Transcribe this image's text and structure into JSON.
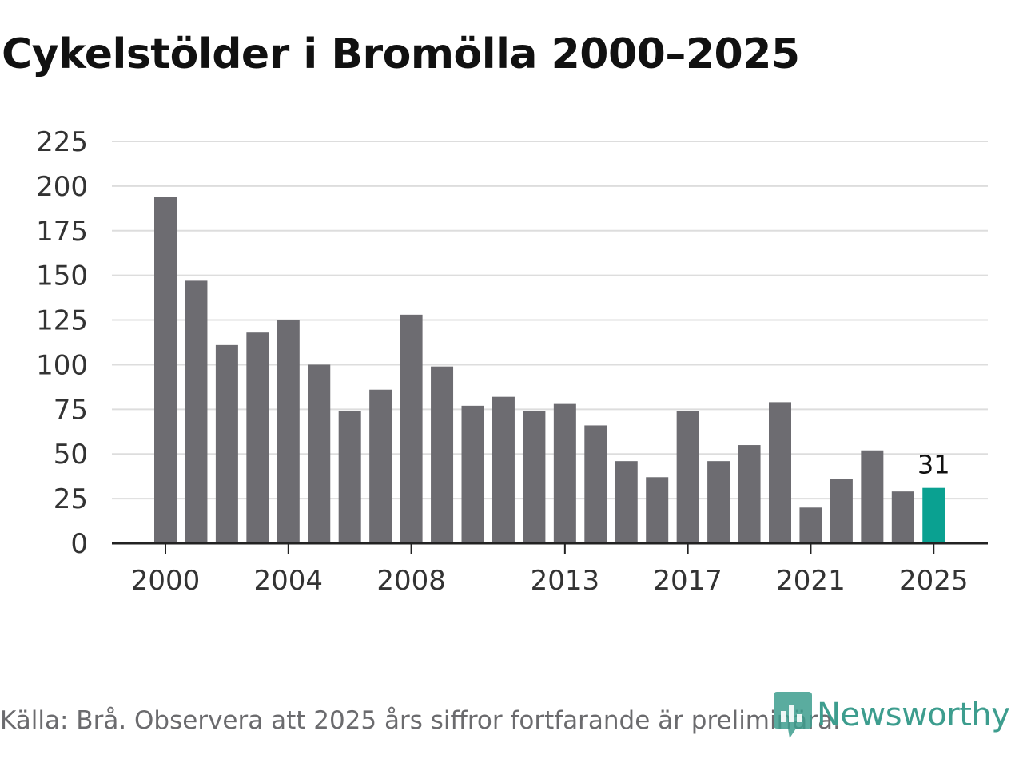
{
  "title": "Cykelstölder i Bromölla 2000–2025",
  "footer": "Källa: Brå. Observera att 2025 års siffror fortfarande är preliminära.",
  "brand": {
    "name": "Newsworthy",
    "icon": "newsworthy-logo-icon"
  },
  "colors": {
    "bar": "#6d6c71",
    "highlight": "#0aa191",
    "grid": "#dddddd",
    "axis": "#222222",
    "text": "#333333"
  },
  "chart_data": {
    "type": "bar",
    "title": "Cykelstölder i Bromölla 2000–2025",
    "xlabel": "",
    "ylabel": "",
    "ylim": [
      0,
      225
    ],
    "yticks": [
      0,
      25,
      50,
      75,
      100,
      125,
      150,
      175,
      200,
      225
    ],
    "xtick_labels": [
      "2000",
      "2004",
      "2008",
      "2013",
      "2017",
      "2021",
      "2025"
    ],
    "categories": [
      "2000",
      "2001",
      "2002",
      "2003",
      "2004",
      "2005",
      "2006",
      "2007",
      "2008",
      "2009",
      "2010",
      "2011",
      "2012",
      "2013",
      "2014",
      "2015",
      "2016",
      "2017",
      "2018",
      "2019",
      "2020",
      "2021",
      "2022",
      "2023",
      "2024",
      "2025"
    ],
    "values": [
      194,
      147,
      111,
      118,
      125,
      100,
      74,
      86,
      128,
      99,
      77,
      82,
      74,
      78,
      66,
      46,
      37,
      74,
      46,
      55,
      79,
      20,
      36,
      52,
      29,
      31
    ],
    "highlight": {
      "category": "2025",
      "label": "31"
    },
    "grid": true
  }
}
